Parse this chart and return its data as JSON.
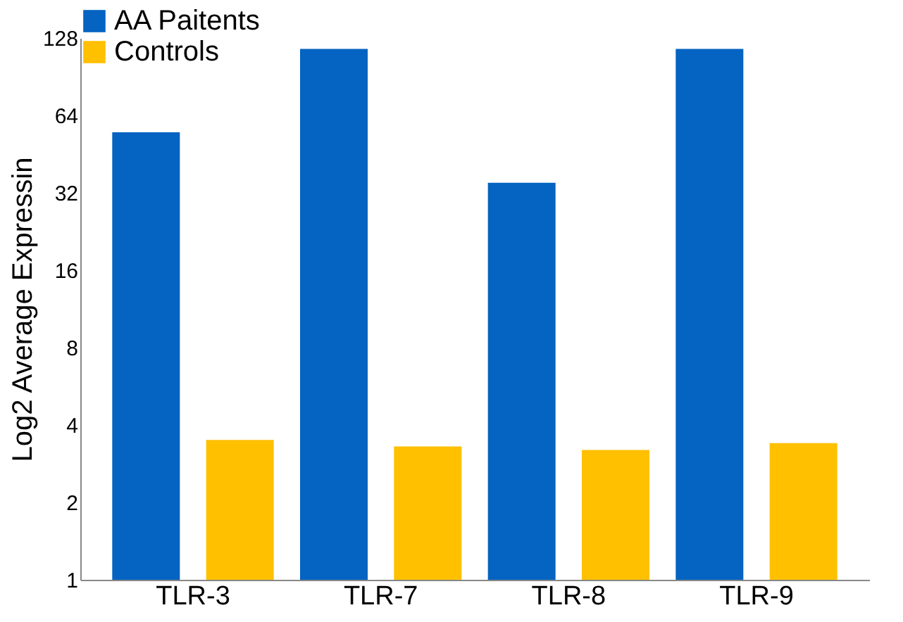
{
  "chart_data": {
    "type": "bar",
    "ylabel": "Log2 Average Expressin",
    "categories": [
      "TLR-3",
      "TLR-7",
      "TLR-8",
      "TLR-9"
    ],
    "series": [
      {
        "name": "AA Paitents",
        "color": "#0563c1",
        "values": [
          55,
          116,
          35,
          116
        ]
      },
      {
        "name": "Controls",
        "color": "#ffc000",
        "values": [
          3.5,
          3.3,
          3.2,
          3.4
        ]
      }
    ],
    "log": "y",
    "ylim": [
      1,
      128
    ],
    "yticks": [
      1,
      2,
      4,
      8,
      16,
      32,
      64,
      128
    ],
    "grid": false,
    "legend": "top"
  }
}
